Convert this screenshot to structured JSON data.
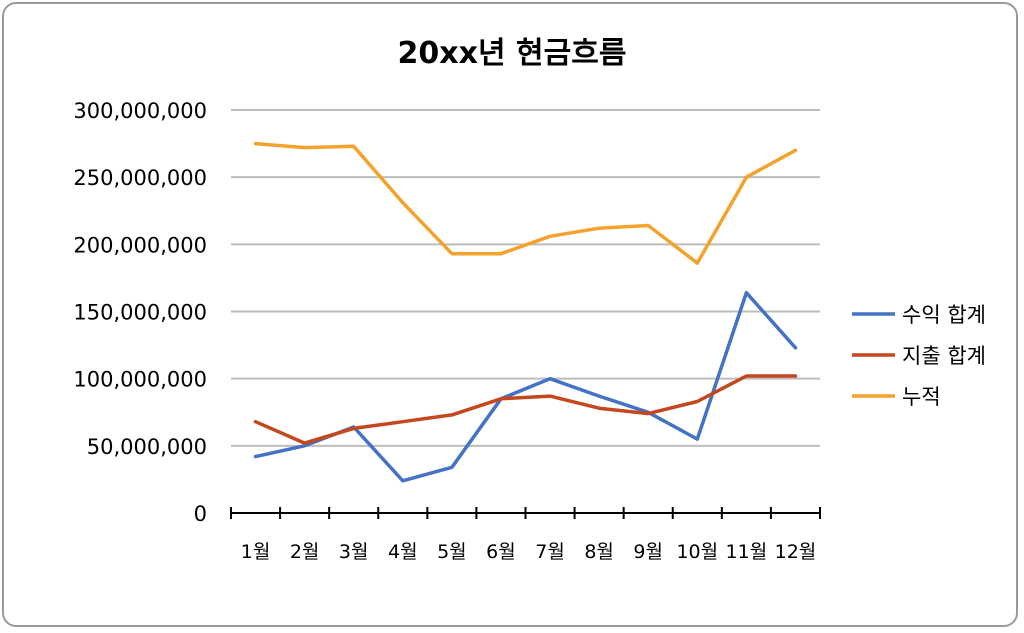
{
  "chart_data": {
    "type": "line",
    "title": "20xx년 현금흐름",
    "xlabel": "",
    "ylabel": "",
    "categories": [
      "1월",
      "2월",
      "3월",
      "4월",
      "5월",
      "6월",
      "7월",
      "8월",
      "9월",
      "10월",
      "11월",
      "12월"
    ],
    "ylim": [
      0,
      300000000
    ],
    "yticks": [
      0,
      50000000,
      100000000,
      150000000,
      200000000,
      250000000,
      300000000
    ],
    "ytick_labels": [
      "0",
      "50,000,000",
      "100,000,000",
      "150,000,000",
      "200,000,000",
      "250,000,000",
      "300,000,000"
    ],
    "grid": true,
    "legend_position": "right",
    "series": [
      {
        "name": "수익 합계",
        "color": "#4472C4",
        "values": [
          42000000,
          50000000,
          64000000,
          24000000,
          34000000,
          85000000,
          100000000,
          87000000,
          75000000,
          55000000,
          164000000,
          123000000
        ]
      },
      {
        "name": "지출 합계",
        "color": "#C5471E",
        "values": [
          68000000,
          52000000,
          63000000,
          68000000,
          73000000,
          85000000,
          87000000,
          78000000,
          74000000,
          83000000,
          102000000,
          102000000
        ]
      },
      {
        "name": "누적",
        "color": "#F4A22E",
        "values": [
          275000000,
          272000000,
          273000000,
          231000000,
          193000000,
          193000000,
          206000000,
          212000000,
          214000000,
          186000000,
          250000000,
          270000000
        ]
      }
    ]
  }
}
